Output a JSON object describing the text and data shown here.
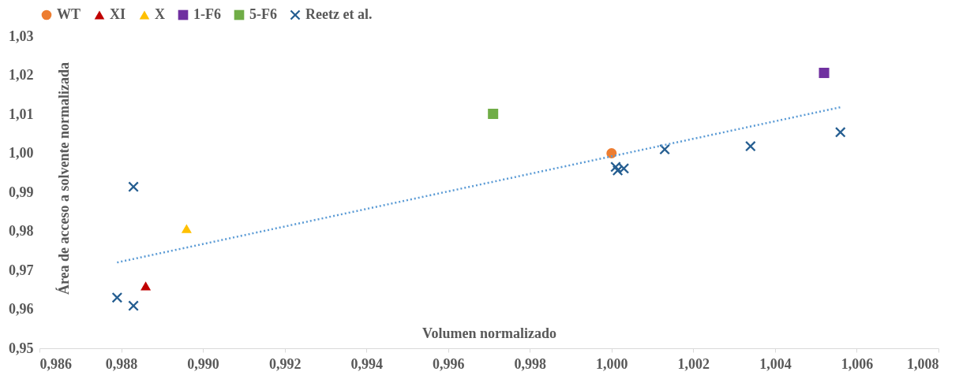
{
  "chart_data": {
    "type": "scatter",
    "xlabel": "Volumen normalizado",
    "ylabel": "Área de acceso a solvente normalizada",
    "xlim": [
      0.986,
      1.008
    ],
    "xticks": [
      {
        "value": 0.986,
        "label": "0,986"
      },
      {
        "value": 0.988,
        "label": "0,988"
      },
      {
        "value": 0.99,
        "label": "0,990"
      },
      {
        "value": 0.992,
        "label": "0,992"
      },
      {
        "value": 0.994,
        "label": "0,994"
      },
      {
        "value": 0.996,
        "label": "0,996"
      },
      {
        "value": 0.998,
        "label": "0,998"
      },
      {
        "value": 1.0,
        "label": "1,000"
      },
      {
        "value": 1.002,
        "label": "1,002"
      },
      {
        "value": 1.004,
        "label": "1,004"
      },
      {
        "value": 1.006,
        "label": "1,006"
      },
      {
        "value": 1.008,
        "label": "1,008"
      }
    ],
    "ylim": [
      0.95,
      1.03
    ],
    "yticks": [
      {
        "value": 0.95,
        "label": "0,95"
      },
      {
        "value": 0.96,
        "label": "0,96"
      },
      {
        "value": 0.97,
        "label": "0,97"
      },
      {
        "value": 0.98,
        "label": "0,98"
      },
      {
        "value": 0.99,
        "label": "0,99"
      },
      {
        "value": 1.0,
        "label": "1,00"
      },
      {
        "value": 1.01,
        "label": "1,01"
      },
      {
        "value": 1.02,
        "label": "1,02"
      },
      {
        "value": 1.03,
        "label": "1,03"
      }
    ],
    "grid": false,
    "legend": "top",
    "series": [
      {
        "name": "WT",
        "color": "#ed7d31",
        "marker": "circle",
        "x": [
          1.0
        ],
        "values": [
          1.0
        ]
      },
      {
        "name": "XI",
        "color": "#c00000",
        "marker": "triangle",
        "x": [
          0.9886
        ],
        "values": [
          0.966
        ]
      },
      {
        "name": "X",
        "color": "#ffc000",
        "marker": "triangle",
        "x": [
          0.9896
        ],
        "values": [
          0.9807
        ]
      },
      {
        "name": "1-F6",
        "color": "#7030a0",
        "marker": "square",
        "x": [
          1.0052
        ],
        "values": [
          1.0206
        ]
      },
      {
        "name": "5-F6",
        "color": "#70ad47",
        "marker": "square",
        "x": [
          0.9971
        ],
        "values": [
          1.0101
        ]
      },
      {
        "name": "Reetz et al.",
        "color": "#255e91",
        "marker": "cross",
        "x": [
          0.9879,
          0.9883,
          0.9883,
          1.0001,
          1.00015,
          1.0003,
          1.0013,
          1.0034,
          1.0056
        ],
        "values": [
          0.963,
          0.9609,
          0.9914,
          0.9965,
          0.9956,
          0.9961,
          1.001,
          1.0018,
          1.0054
        ]
      },
      {
        "type": "line",
        "color": "#5b9bd5",
        "line_style": "dotted",
        "x": [
          0.9879,
          1.0056
        ],
        "values": [
          0.972,
          1.0118
        ]
      }
    ]
  }
}
